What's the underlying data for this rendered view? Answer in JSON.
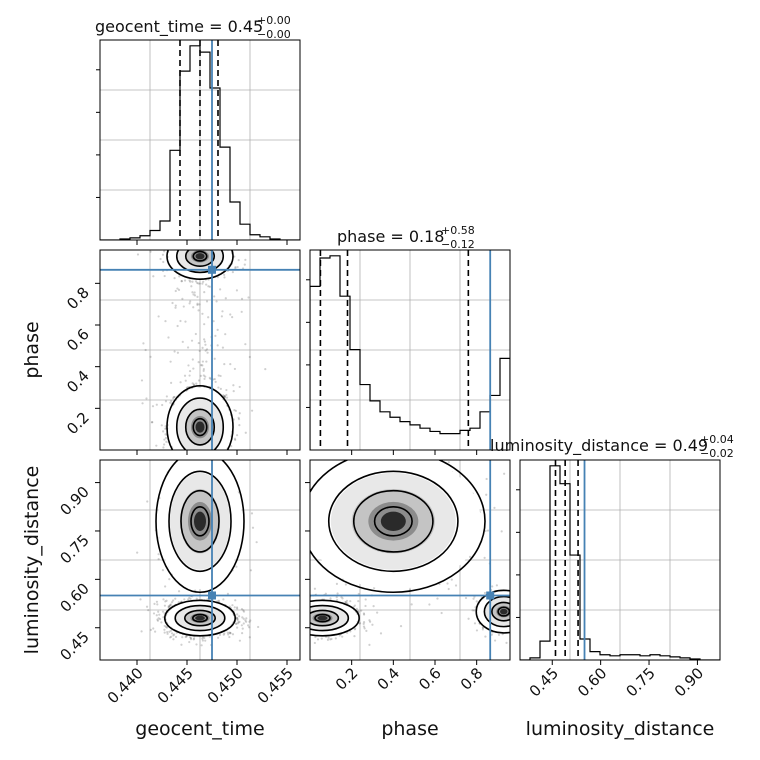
{
  "chart_data": {
    "type": "corner",
    "parameters": [
      "geocent_time",
      "phase",
      "luminosity_distance"
    ],
    "truths": {
      "geocent_time": 0.4475,
      "phase": 0.865,
      "luminosity_distance": 0.55
    },
    "truth_color": "#4682b4",
    "grid": true,
    "titles": [
      {
        "param": "geocent_time",
        "text": "geocent_time = 0.45",
        "plus": "+0.00",
        "minus": "−0.00"
      },
      {
        "param": "phase",
        "text": "phase = 0.18",
        "plus": "+0.58",
        "minus": "−0.12"
      },
      {
        "param": "luminosity_distance",
        "text": "luminosity_distance = 0.49",
        "plus": "+0.04",
        "minus": "−0.02"
      }
    ],
    "axis_labels": {
      "x": [
        "geocent_time",
        "phase",
        "luminosity_distance"
      ],
      "y": [
        "phase",
        "luminosity_distance"
      ]
    },
    "ranges": {
      "geocent_time": [
        0.4363,
        0.4563
      ],
      "phase": [
        0.0,
        0.96
      ],
      "luminosity_distance": [
        0.35,
        0.97
      ]
    },
    "ticks": {
      "geocent_time": [
        "0.440",
        "0.445",
        "0.450",
        "0.455"
      ],
      "phase": [
        "0.2",
        "0.4",
        "0.6",
        "0.8"
      ],
      "luminosity_distance": [
        "0.45",
        "0.60",
        "0.75",
        "0.90"
      ]
    },
    "quantiles": {
      "geocent_time": [
        0.4443,
        0.4463,
        0.4481
      ],
      "phase": [
        0.05,
        0.18,
        0.76
      ],
      "luminosity_distance": [
        0.46,
        0.49,
        0.53
      ]
    },
    "histograms": {
      "geocent_time": {
        "edges": [
          0.4363,
          0.4373,
          0.4383,
          0.4393,
          0.4403,
          0.4413,
          0.4423,
          0.4433,
          0.4443,
          0.4453,
          0.4463,
          0.4473,
          0.4483,
          0.4493,
          0.4503,
          0.4513,
          0.4523,
          0.4533,
          0.4543,
          0.4553,
          0.4563
        ],
        "counts": [
          0,
          0,
          1,
          2,
          4,
          9,
          18,
          85,
          160,
          184,
          178,
          144,
          88,
          36,
          15,
          5,
          3,
          1,
          0,
          0
        ]
      },
      "phase": {
        "edges": [
          0.0,
          0.048,
          0.096,
          0.144,
          0.192,
          0.24,
          0.288,
          0.336,
          0.384,
          0.432,
          0.48,
          0.528,
          0.576,
          0.624,
          0.672,
          0.72,
          0.768,
          0.816,
          0.864,
          0.912,
          0.96
        ],
        "counts": [
          150,
          176,
          178,
          141,
          92,
          60,
          45,
          35,
          30,
          26,
          23,
          20,
          17,
          15,
          15,
          18,
          20,
          35,
          50,
          84
        ]
      },
      "luminosity_distance": {
        "edges": [
          0.35,
          0.381,
          0.412,
          0.443,
          0.474,
          0.505,
          0.536,
          0.567,
          0.598,
          0.629,
          0.66,
          0.691,
          0.722,
          0.753,
          0.784,
          0.815,
          0.846,
          0.877,
          0.908,
          0.939,
          0.97
        ],
        "counts": [
          0,
          2,
          18,
          185,
          168,
          100,
          20,
          8,
          5,
          4,
          5,
          5,
          4,
          5,
          4,
          3,
          2,
          1,
          0,
          0
        ]
      }
    },
    "posterior_blobs": [
      {
        "pair": [
          "geocent_time",
          "phase"
        ],
        "mode": [
          0.4463,
          0.11
        ],
        "spread": [
          0.0015,
          0.09
        ],
        "weight": 0.55
      },
      {
        "pair": [
          "geocent_time",
          "phase"
        ],
        "mode": [
          0.4463,
          0.93
        ],
        "spread": [
          0.0015,
          0.05
        ],
        "weight": 0.35
      },
      {
        "pair": [
          "geocent_time",
          "phase"
        ],
        "mode": [
          0.4463,
          0.5
        ],
        "spread": [
          0.002,
          0.25
        ],
        "weight": 0.1
      },
      {
        "pair": [
          "geocent_time",
          "luminosity_distance"
        ],
        "mode": [
          0.4463,
          0.48
        ],
        "spread": [
          0.0016,
          0.025
        ],
        "weight": 0.85
      },
      {
        "pair": [
          "geocent_time",
          "luminosity_distance"
        ],
        "mode": [
          0.4463,
          0.78
        ],
        "spread": [
          0.002,
          0.1
        ],
        "weight": 0.15
      },
      {
        "pair": [
          "phase",
          "luminosity_distance"
        ],
        "mode": [
          0.06,
          0.48
        ],
        "spread": [
          0.08,
          0.025
        ],
        "weight": 0.5
      },
      {
        "pair": [
          "phase",
          "luminosity_distance"
        ],
        "mode": [
          0.93,
          0.5
        ],
        "spread": [
          0.06,
          0.03
        ],
        "weight": 0.3
      },
      {
        "pair": [
          "phase",
          "luminosity_distance"
        ],
        "mode": [
          0.4,
          0.78
        ],
        "spread": [
          0.2,
          0.1
        ],
        "weight": 0.2
      }
    ]
  }
}
